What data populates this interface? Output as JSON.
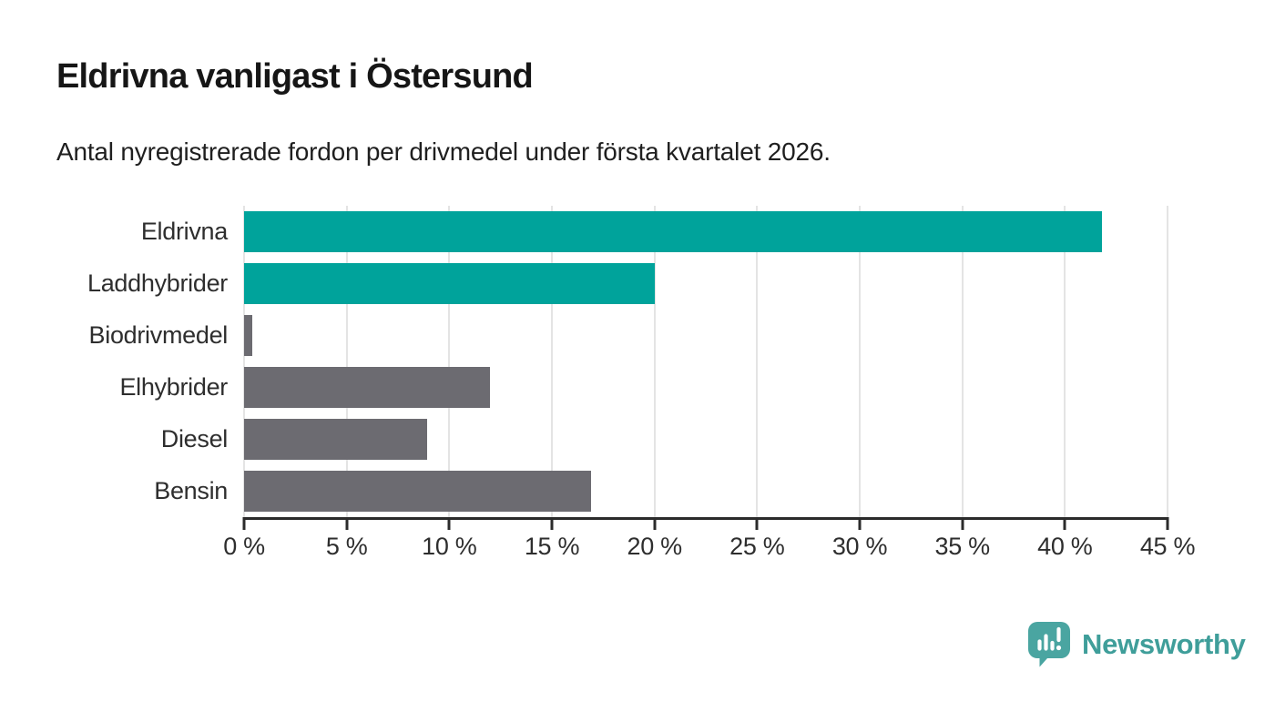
{
  "chart_data": {
    "type": "bar",
    "orientation": "horizontal",
    "title": "Eldrivna vanligast i Östersund",
    "subtitle": "Antal nyregistrerade fordon per drivmedel under första kvartalet 2026.",
    "categories": [
      "Eldrivna",
      "Laddhybrider",
      "Biodrivmedel",
      "Elhybrider",
      "Diesel",
      "Bensin"
    ],
    "values": [
      41.8,
      20.0,
      0.4,
      12.0,
      8.9,
      16.9
    ],
    "unit": "%",
    "bar_colors": [
      "#00a39b",
      "#00a39b",
      "#6c6b71",
      "#6c6b71",
      "#6c6b71",
      "#6c6b71"
    ],
    "xlim": [
      0,
      45
    ],
    "x_ticks": [
      {
        "value": 0,
        "label": "0 %"
      },
      {
        "value": 5,
        "label": "5 %"
      },
      {
        "value": 10,
        "label": "10 %"
      },
      {
        "value": 15,
        "label": "15 %"
      },
      {
        "value": 20,
        "label": "20 %"
      },
      {
        "value": 25,
        "label": "25 %"
      },
      {
        "value": 30,
        "label": "30 %"
      },
      {
        "value": 35,
        "label": "35 %"
      },
      {
        "value": 40,
        "label": "40 %"
      },
      {
        "value": 45,
        "label": "45 %"
      }
    ],
    "grid": "vertical-light",
    "legend": "none"
  },
  "branding": {
    "logo_text": "Newsworthy",
    "logo_icon": "newsworthy-badge-icon",
    "wordmark_color": "#3f9e9a",
    "badge_color": "#4aa5a1"
  },
  "colors": {
    "highlight_teal": "#00a39b",
    "neutral_gray": "#6c6b71",
    "axis": "#2b2b2b",
    "gridline": "#e4e4e4",
    "background": "#ffffff"
  }
}
